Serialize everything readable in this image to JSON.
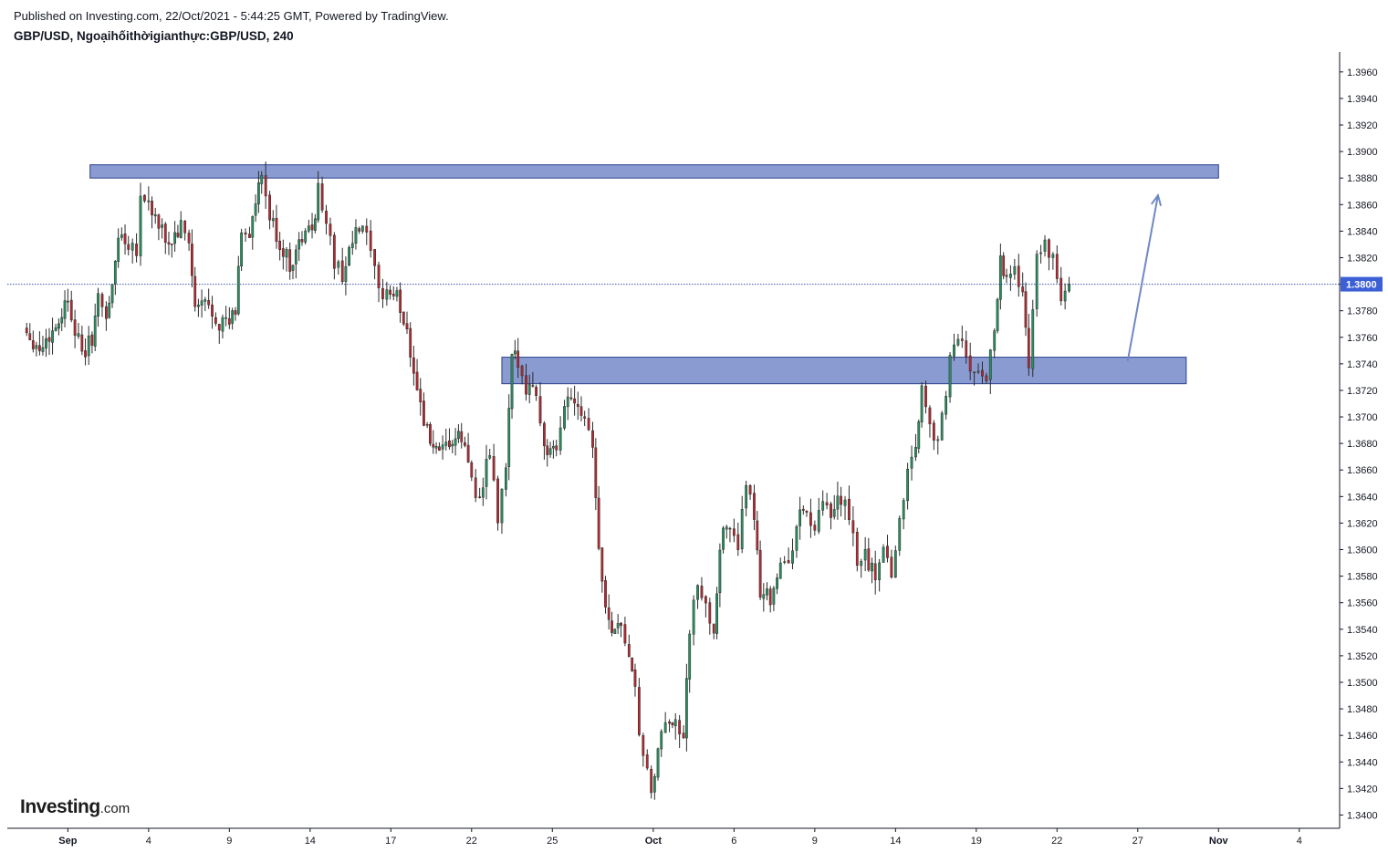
{
  "header": {
    "published": "Published on Investing.com, 22/Oct/2021 - 5:44:25 GMT, Powered by TradingView.",
    "symbol": "GBP/USD, Ngoạihốithờigianthực:GBP/USD, 240"
  },
  "logo": {
    "brand": "Investing",
    "tld": ".com"
  },
  "colors": {
    "up": "#26915f",
    "down": "#b8282e",
    "zone_fill": "#8a9bd1",
    "zone_stroke": "#2a3f8f",
    "arrow": "#6f88c7",
    "price_line": "#3c57b3",
    "price_badge": "#3d5fd6",
    "axis": "#131722"
  },
  "chart_data": {
    "type": "candlestick",
    "title": "GBP/USD, 240",
    "ylim": [
      1.339,
      1.3975
    ],
    "y_ticks": [
      1.396,
      1.394,
      1.392,
      1.39,
      1.388,
      1.386,
      1.384,
      1.382,
      1.38,
      1.378,
      1.376,
      1.374,
      1.372,
      1.37,
      1.368,
      1.366,
      1.364,
      1.362,
      1.36,
      1.358,
      1.356,
      1.354,
      1.352,
      1.35,
      1.348,
      1.346,
      1.344,
      1.342,
      1.34
    ],
    "y_tick_labels": [
      "1.3960",
      "1.3940",
      "1.3920",
      "1.3900",
      "1.3880",
      "1.3860",
      "1.3840",
      "1.3820",
      "1.3800",
      "1.3780",
      "1.3760",
      "1.3740",
      "1.3720",
      "1.3700",
      "1.3680",
      "1.3660",
      "1.3640",
      "1.3620",
      "1.3600",
      "1.3580",
      "1.3560",
      "1.3540",
      "1.3520",
      "1.3500",
      "1.3480",
      "1.3460",
      "1.3440",
      "1.3420",
      "1.3400"
    ],
    "x_range_days": [
      -3.0,
      63.0
    ],
    "x_ticks": [
      {
        "day": 0,
        "label": "Sep",
        "bold": true
      },
      {
        "day": 4,
        "label": "4",
        "bold": false
      },
      {
        "day": 8,
        "label": "9",
        "bold": false
      },
      {
        "day": 12,
        "label": "14",
        "bold": false
      },
      {
        "day": 16,
        "label": "17",
        "bold": false
      },
      {
        "day": 20,
        "label": "22",
        "bold": false
      },
      {
        "day": 24,
        "label": "25",
        "bold": false
      },
      {
        "day": 29,
        "label": "Oct",
        "bold": true
      },
      {
        "day": 33,
        "label": "6",
        "bold": false
      },
      {
        "day": 37,
        "label": "9",
        "bold": false
      },
      {
        "day": 41,
        "label": "14",
        "bold": false
      },
      {
        "day": 45,
        "label": "19",
        "bold": false
      },
      {
        "day": 49,
        "label": "22",
        "bold": false
      },
      {
        "day": 53,
        "label": "27",
        "bold": false
      },
      {
        "day": 57,
        "label": "Nov",
        "bold": true
      },
      {
        "day": 61,
        "label": "4",
        "bold": false
      }
    ],
    "current_price": 1.38,
    "current_price_label": "1.3800",
    "zones": [
      {
        "name": "resistance",
        "x_start": 1.1,
        "x_end": 57.0,
        "y_low": 1.388,
        "y_high": 1.389
      },
      {
        "name": "support",
        "x_start": 21.5,
        "x_end": 55.4,
        "y_low": 1.3725,
        "y_high": 1.3745
      }
    ],
    "arrow": {
      "from": [
        52.5,
        1.3742
      ],
      "to": [
        54.0,
        1.3867
      ]
    },
    "anchors": [
      {
        "day": -2.2,
        "price": 1.3768
      },
      {
        "day": -1.4,
        "price": 1.3751
      },
      {
        "day": -0.6,
        "price": 1.3768
      },
      {
        "day": 0.0,
        "price": 1.379
      },
      {
        "day": 0.7,
        "price": 1.3745
      },
      {
        "day": 1.2,
        "price": 1.376
      },
      {
        "day": 1.5,
        "price": 1.3788
      },
      {
        "day": 1.9,
        "price": 1.3778
      },
      {
        "day": 2.2,
        "price": 1.3796
      },
      {
        "day": 2.5,
        "price": 1.3838
      },
      {
        "day": 3.0,
        "price": 1.3832
      },
      {
        "day": 3.4,
        "price": 1.3828
      },
      {
        "day": 3.6,
        "price": 1.3866
      },
      {
        "day": 4.0,
        "price": 1.3862
      },
      {
        "day": 4.5,
        "price": 1.3842
      },
      {
        "day": 5.0,
        "price": 1.383
      },
      {
        "day": 5.6,
        "price": 1.3842
      },
      {
        "day": 6.0,
        "price": 1.3832
      },
      {
        "day": 6.3,
        "price": 1.378
      },
      {
        "day": 6.8,
        "price": 1.3786
      },
      {
        "day": 7.5,
        "price": 1.3772
      },
      {
        "day": 8.0,
        "price": 1.377
      },
      {
        "day": 8.3,
        "price": 1.378
      },
      {
        "day": 8.6,
        "price": 1.3842
      },
      {
        "day": 9.0,
        "price": 1.3838
      },
      {
        "day": 9.3,
        "price": 1.386
      },
      {
        "day": 9.6,
        "price": 1.388
      },
      {
        "day": 10.0,
        "price": 1.385
      },
      {
        "day": 10.5,
        "price": 1.383
      },
      {
        "day": 11.0,
        "price": 1.3815
      },
      {
        "day": 11.6,
        "price": 1.3835
      },
      {
        "day": 12.1,
        "price": 1.3842
      },
      {
        "day": 12.4,
        "price": 1.387
      },
      {
        "day": 12.8,
        "price": 1.385
      },
      {
        "day": 13.2,
        "price": 1.3815
      },
      {
        "day": 13.6,
        "price": 1.3808
      },
      {
        "day": 14.1,
        "price": 1.3832
      },
      {
        "day": 14.6,
        "price": 1.3844
      },
      {
        "day": 15.0,
        "price": 1.3822
      },
      {
        "day": 15.4,
        "price": 1.3792
      },
      {
        "day": 15.8,
        "price": 1.3795
      },
      {
        "day": 16.3,
        "price": 1.379
      },
      {
        "day": 16.8,
        "price": 1.3765
      },
      {
        "day": 17.3,
        "price": 1.3722
      },
      {
        "day": 17.8,
        "price": 1.3688
      },
      {
        "day": 18.4,
        "price": 1.3668
      },
      {
        "day": 18.9,
        "price": 1.368
      },
      {
        "day": 19.5,
        "price": 1.3684
      },
      {
        "day": 20.0,
        "price": 1.3656
      },
      {
        "day": 20.4,
        "price": 1.3636
      },
      {
        "day": 20.9,
        "price": 1.3674
      },
      {
        "day": 21.3,
        "price": 1.3622
      },
      {
        "day": 21.7,
        "price": 1.3662
      },
      {
        "day": 22.0,
        "price": 1.3742
      },
      {
        "day": 22.3,
        "price": 1.3744
      },
      {
        "day": 22.7,
        "price": 1.3724
      },
      {
        "day": 23.2,
        "price": 1.372
      },
      {
        "day": 23.6,
        "price": 1.3676
      },
      {
        "day": 24.2,
        "price": 1.367
      },
      {
        "day": 24.6,
        "price": 1.3712
      },
      {
        "day": 25.1,
        "price": 1.3716
      },
      {
        "day": 25.6,
        "price": 1.3702
      },
      {
        "day": 26.0,
        "price": 1.3682
      },
      {
        "day": 26.3,
        "price": 1.3598
      },
      {
        "day": 26.8,
        "price": 1.3542
      },
      {
        "day": 27.4,
        "price": 1.3544
      },
      {
        "day": 27.8,
        "price": 1.352
      },
      {
        "day": 28.1,
        "price": 1.349
      },
      {
        "day": 28.5,
        "price": 1.344
      },
      {
        "day": 28.9,
        "price": 1.3418
      },
      {
        "day": 29.4,
        "price": 1.3458
      },
      {
        "day": 29.8,
        "price": 1.347
      },
      {
        "day": 30.1,
        "price": 1.3476
      },
      {
        "day": 30.5,
        "price": 1.3452
      },
      {
        "day": 30.8,
        "price": 1.3542
      },
      {
        "day": 31.2,
        "price": 1.357
      },
      {
        "day": 31.6,
        "price": 1.3556
      },
      {
        "day": 32.0,
        "price": 1.354
      },
      {
        "day": 32.3,
        "price": 1.3604
      },
      {
        "day": 32.8,
        "price": 1.362
      },
      {
        "day": 33.2,
        "price": 1.3606
      },
      {
        "day": 33.6,
        "price": 1.3642
      },
      {
        "day": 34.0,
        "price": 1.3628
      },
      {
        "day": 34.3,
        "price": 1.357
      },
      {
        "day": 34.8,
        "price": 1.3565
      },
      {
        "day": 35.3,
        "price": 1.359
      },
      {
        "day": 35.7,
        "price": 1.3586
      },
      {
        "day": 36.1,
        "price": 1.3622
      },
      {
        "day": 36.6,
        "price": 1.363
      },
      {
        "day": 37.0,
        "price": 1.3612
      },
      {
        "day": 37.4,
        "price": 1.3634
      },
      {
        "day": 37.8,
        "price": 1.3622
      },
      {
        "day": 38.3,
        "price": 1.364
      },
      {
        "day": 38.7,
        "price": 1.3622
      },
      {
        "day": 39.1,
        "price": 1.3592
      },
      {
        "day": 39.5,
        "price": 1.3596
      },
      {
        "day": 40.0,
        "price": 1.3578
      },
      {
        "day": 40.4,
        "price": 1.3608
      },
      {
        "day": 40.8,
        "price": 1.358
      },
      {
        "day": 41.2,
        "price": 1.3622
      },
      {
        "day": 41.6,
        "price": 1.366
      },
      {
        "day": 42.0,
        "price": 1.368
      },
      {
        "day": 42.3,
        "price": 1.372
      },
      {
        "day": 42.7,
        "price": 1.37
      },
      {
        "day": 43.1,
        "price": 1.3676
      },
      {
        "day": 43.5,
        "price": 1.372
      },
      {
        "day": 43.9,
        "price": 1.376
      },
      {
        "day": 44.3,
        "price": 1.3752
      },
      {
        "day": 44.7,
        "price": 1.3738
      },
      {
        "day": 45.1,
        "price": 1.373
      },
      {
        "day": 45.5,
        "price": 1.373
      },
      {
        "day": 45.9,
        "price": 1.3768
      },
      {
        "day": 46.2,
        "price": 1.382
      },
      {
        "day": 46.5,
        "price": 1.3805
      },
      {
        "day": 46.9,
        "price": 1.3812
      },
      {
        "day": 47.3,
        "price": 1.379
      },
      {
        "day": 47.6,
        "price": 1.3744
      },
      {
        "day": 48.0,
        "price": 1.3822
      },
      {
        "day": 48.4,
        "price": 1.383
      },
      {
        "day": 48.8,
        "price": 1.3816
      },
      {
        "day": 49.2,
        "price": 1.3788
      },
      {
        "day": 49.6,
        "price": 1.38
      }
    ]
  }
}
